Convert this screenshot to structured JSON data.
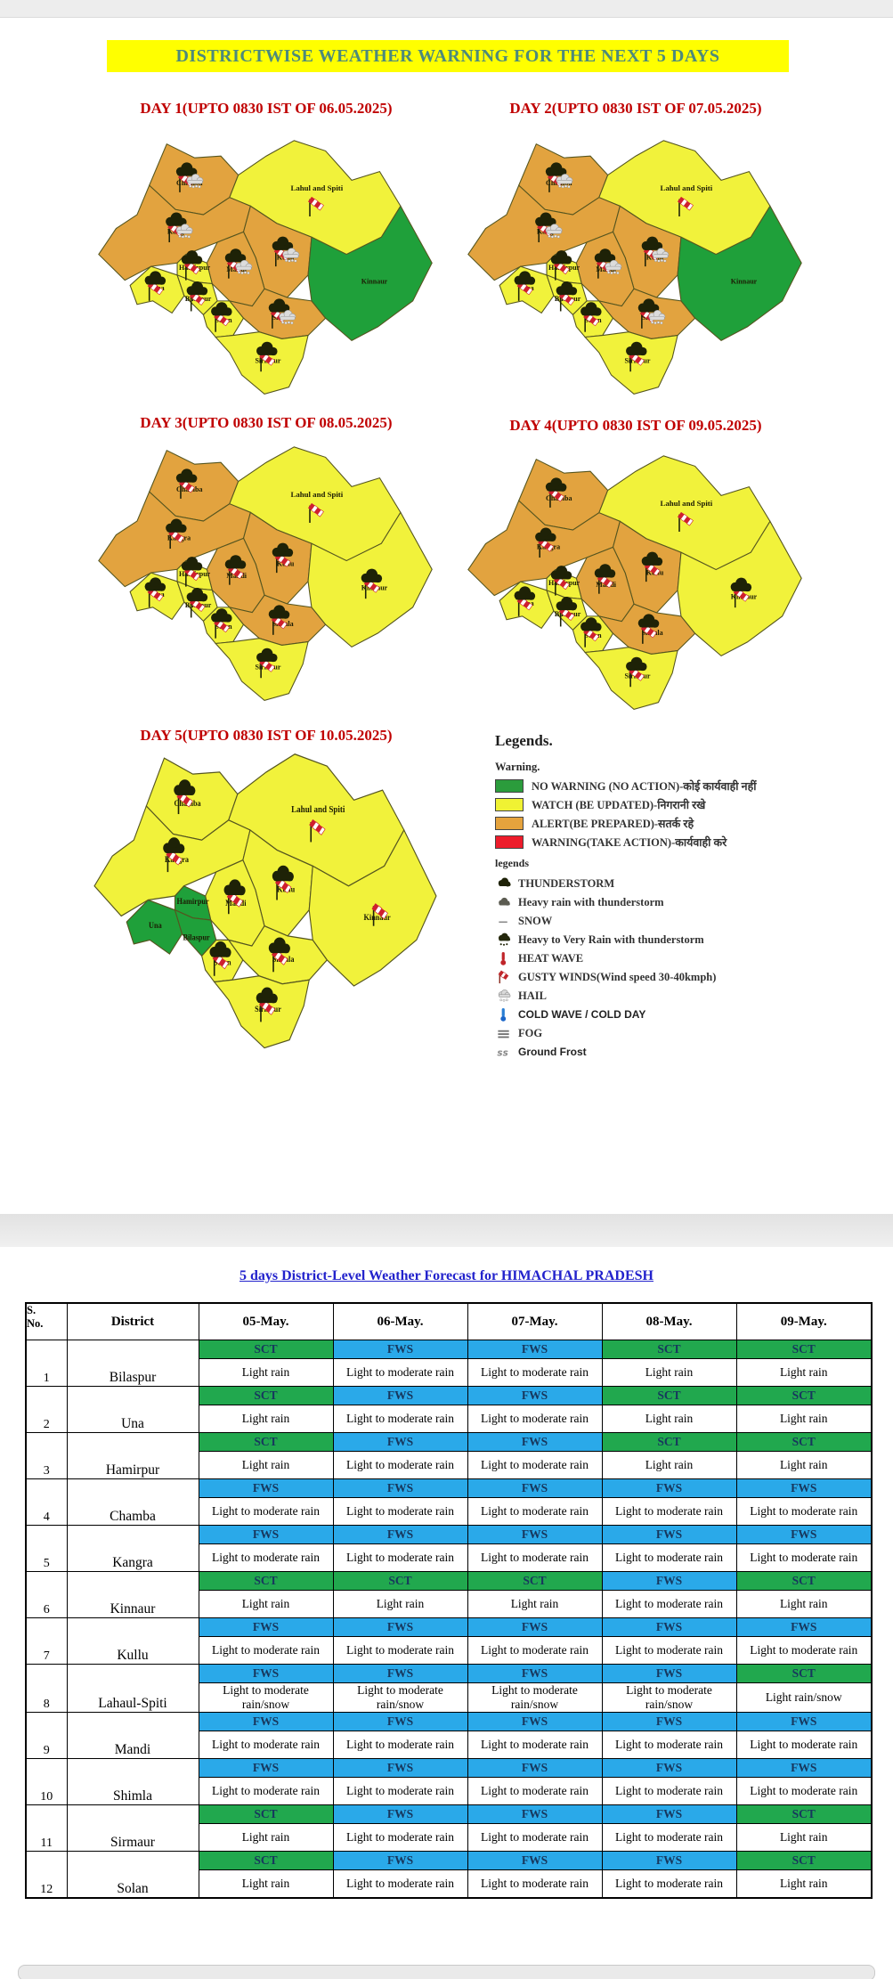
{
  "banner": {
    "text": "DISTRICTWISE WEATHER WARNING FOR THE NEXT 5 DAYS",
    "bg_color": "#ffff00",
    "text_color": "#4d8a7b"
  },
  "warning_colors": {
    "no_warning": "#1fa03a",
    "watch": "#f1f23b",
    "alert": "#e2a33f",
    "warning": "#ed1c2b"
  },
  "days": [
    {
      "title": "DAY 1(UPTO 0830 IST OF 06.05.2025)",
      "warnings": {
        "Chamba": "alert",
        "Lahul and Spiti": "watch",
        "Kangra": "alert",
        "Kullu": "alert",
        "Mandi": "alert",
        "Hamirpur": "watch",
        "Una": "watch",
        "Bilaspur": "watch",
        "Solan": "watch",
        "Shimla": "alert",
        "Sirmaur": "watch",
        "Kinnaur": "no_warning"
      },
      "icons": {
        "Chamba": "thunderstorm-rain-windsock",
        "Lahul and Spiti": "windsock",
        "Kangra": "thunderstorm-rain-windsock",
        "Kullu": "thunderstorm-rain-windsock",
        "Mandi": "thunderstorm-rain-windsock",
        "Hamirpur": "thunderstorm-windsock",
        "Una": "thunderstorm-windsock",
        "Bilaspur": "thunderstorm-windsock",
        "Solan": "thunderstorm-windsock",
        "Shimla": "thunderstorm-rain-windsock",
        "Sirmaur": "thunderstorm-windsock",
        "Kinnaur": "none"
      }
    },
    {
      "title": "DAY 2(UPTO 0830 IST OF 07.05.2025)",
      "warnings": {
        "Chamba": "alert",
        "Lahul and Spiti": "watch",
        "Kangra": "alert",
        "Kullu": "alert",
        "Mandi": "alert",
        "Hamirpur": "watch",
        "Una": "watch",
        "Bilaspur": "watch",
        "Solan": "watch",
        "Shimla": "alert",
        "Sirmaur": "watch",
        "Kinnaur": "no_warning"
      },
      "icons": {
        "Chamba": "thunderstorm-rain-windsock",
        "Lahul and Spiti": "windsock",
        "Kangra": "thunderstorm-rain-windsock",
        "Kullu": "thunderstorm-rain-windsock",
        "Mandi": "thunderstorm-rain-windsock",
        "Hamirpur": "thunderstorm-windsock",
        "Una": "thunderstorm-windsock",
        "Bilaspur": "thunderstorm-windsock",
        "Solan": "thunderstorm-windsock",
        "Shimla": "thunderstorm-rain-windsock",
        "Sirmaur": "thunderstorm-windsock",
        "Kinnaur": "none"
      }
    },
    {
      "title": "DAY 3(UPTO 0830 IST OF 08.05.2025)",
      "warnings": {
        "Chamba": "alert",
        "Lahul and Spiti": "watch",
        "Kangra": "alert",
        "Kullu": "alert",
        "Mandi": "alert",
        "Hamirpur": "watch",
        "Una": "watch",
        "Bilaspur": "watch",
        "Solan": "watch",
        "Shimla": "alert",
        "Sirmaur": "watch",
        "Kinnaur": "watch"
      },
      "icons": {
        "Chamba": "thunderstorm-windsock",
        "Lahul and Spiti": "windsock",
        "Kangra": "thunderstorm-windsock",
        "Kullu": "thunderstorm-windsock",
        "Mandi": "thunderstorm-windsock",
        "Hamirpur": "thunderstorm-windsock",
        "Una": "thunderstorm-windsock",
        "Bilaspur": "thunderstorm-windsock",
        "Solan": "thunderstorm-windsock",
        "Shimla": "thunderstorm-windsock",
        "Sirmaur": "thunderstorm-windsock",
        "Kinnaur": "thunderstorm-windsock"
      }
    },
    {
      "title": "DAY 4(UPTO 0830 IST OF 09.05.2025)",
      "warnings": {
        "Chamba": "alert",
        "Lahul and Spiti": "watch",
        "Kangra": "alert",
        "Kullu": "alert",
        "Mandi": "alert",
        "Hamirpur": "watch",
        "Una": "watch",
        "Bilaspur": "watch",
        "Solan": "watch",
        "Shimla": "alert",
        "Sirmaur": "watch",
        "Kinnaur": "watch"
      },
      "icons": {
        "Chamba": "thunderstorm-windsock",
        "Lahul and Spiti": "windsock",
        "Kangra": "thunderstorm-windsock",
        "Kullu": "thunderstorm-windsock",
        "Mandi": "thunderstorm-windsock",
        "Hamirpur": "thunderstorm-windsock",
        "Una": "thunderstorm-windsock",
        "Bilaspur": "thunderstorm-windsock",
        "Solan": "thunderstorm-windsock",
        "Shimla": "thunderstorm-windsock",
        "Sirmaur": "thunderstorm-windsock",
        "Kinnaur": "thunderstorm-windsock"
      }
    },
    {
      "title": "DAY 5(UPTO 0830 IST OF 10.05.2025)",
      "warnings": {
        "Chamba": "watch",
        "Lahul and Spiti": "watch",
        "Kangra": "watch",
        "Kullu": "watch",
        "Mandi": "watch",
        "Hamirpur": "no_warning",
        "Una": "no_warning",
        "Bilaspur": "no_warning",
        "Solan": "watch",
        "Shimla": "watch",
        "Sirmaur": "watch",
        "Kinnaur": "watch"
      },
      "icons": {
        "Chamba": "thunderstorm-windsock",
        "Lahul and Spiti": "windsock",
        "Kangra": "thunderstorm-windsock",
        "Kullu": "thunderstorm-windsock",
        "Mandi": "thunderstorm-windsock",
        "Hamirpur": "none",
        "Una": "none",
        "Bilaspur": "none",
        "Solan": "thunderstorm-windsock",
        "Shimla": "thunderstorm-windsock",
        "Sirmaur": "thunderstorm-windsock",
        "Kinnaur": "windsock"
      }
    }
  ],
  "legends": {
    "heading": "Legends.",
    "warning_heading": "Warning.",
    "warning_items": [
      {
        "level": "no_warning",
        "color": "#2b9c3c",
        "label": "NO WARNING (NO ACTION)-कोई कार्यवाही नहीं"
      },
      {
        "level": "watch",
        "color": "#f0f233",
        "label": "WATCH (BE UPDATED)-निगरानी रखे"
      },
      {
        "level": "alert",
        "color": "#e5a33d",
        "label": "ALERT(BE PREPARED)-सतर्क रहे"
      },
      {
        "level": "warning",
        "color": "#ed1c2b",
        "label": "WARNING(TAKE ACTION)-कार्यवाही करे"
      }
    ],
    "symbol_heading": "legends",
    "symbol_items": [
      {
        "icon": "thunderstorm-icon",
        "label": "THUNDERSTORM"
      },
      {
        "icon": "heavy-rain-thunderstorm-icon",
        "label": "Heavy rain with thunderstorm"
      },
      {
        "icon": "snow-icon",
        "label": "SNOW"
      },
      {
        "icon": "heavy-very-rain-icon",
        "label": "Heavy to Very Rain with thunderstorm"
      },
      {
        "icon": "heat-wave-icon",
        "label": "HEAT WAVE"
      },
      {
        "icon": "gusty-winds-icon",
        "label": "GUSTY WINDS(Wind speed 30-40kmph)"
      },
      {
        "icon": "hail-icon",
        "label": "HAIL"
      },
      {
        "icon": "cold-wave-icon",
        "label": "COLD WAVE / COLD DAY"
      },
      {
        "icon": "fog-icon",
        "label": "FOG"
      },
      {
        "icon": "ground-frost-icon",
        "label": "Ground Frost"
      }
    ]
  },
  "forecast_table": {
    "title": "5 days District-Level Weather Forecast for HIMACHAL PRADESH",
    "header": {
      "sno_lines": [
        "S.",
        "No."
      ],
      "district": "District",
      "dates": [
        "05-May.",
        "06-May.",
        "07-May.",
        "08-May.",
        "09-May."
      ]
    },
    "code_colors": {
      "SCT": "#21a84e",
      "FWS": "#2aa9e9"
    },
    "rows": [
      {
        "no": "1",
        "district": "Bilaspur",
        "codes": [
          "SCT",
          "FWS",
          "FWS",
          "SCT",
          "SCT"
        ],
        "forecast": [
          "Light rain",
          "Light to moderate rain",
          "Light to moderate rain",
          "Light rain",
          "Light rain"
        ]
      },
      {
        "no": "2",
        "district": "Una",
        "codes": [
          "SCT",
          "FWS",
          "FWS",
          "SCT",
          "SCT"
        ],
        "forecast": [
          "Light rain",
          "Light to moderate rain",
          "Light to moderate rain",
          "Light rain",
          "Light rain"
        ]
      },
      {
        "no": "3",
        "district": "Hamirpur",
        "codes": [
          "SCT",
          "FWS",
          "FWS",
          "SCT",
          "SCT"
        ],
        "forecast": [
          "Light rain",
          "Light to moderate rain",
          "Light to moderate rain",
          "Light rain",
          "Light rain"
        ]
      },
      {
        "no": "4",
        "district": "Chamba",
        "codes": [
          "FWS",
          "FWS",
          "FWS",
          "FWS",
          "FWS"
        ],
        "forecast": [
          "Light to moderate rain",
          "Light to moderate rain",
          "Light to moderate rain",
          "Light to moderate rain",
          "Light to moderate rain"
        ]
      },
      {
        "no": "5",
        "district": "Kangra",
        "codes": [
          "FWS",
          "FWS",
          "FWS",
          "FWS",
          "FWS"
        ],
        "forecast": [
          "Light to moderate rain",
          "Light to moderate rain",
          "Light to moderate rain",
          "Light to moderate rain",
          "Light to moderate rain"
        ]
      },
      {
        "no": "6",
        "district": "Kinnaur",
        "codes": [
          "SCT",
          "SCT",
          "SCT",
          "FWS",
          "SCT"
        ],
        "forecast": [
          "Light rain",
          "Light rain",
          "Light rain",
          "Light to moderate rain",
          "Light rain"
        ]
      },
      {
        "no": "7",
        "district": "Kullu",
        "codes": [
          "FWS",
          "FWS",
          "FWS",
          "FWS",
          "FWS"
        ],
        "forecast": [
          "Light to moderate rain",
          "Light to moderate rain",
          "Light to moderate rain",
          "Light to moderate rain",
          "Light to moderate rain"
        ]
      },
      {
        "no": "8",
        "district": "Lahaul-Spiti",
        "codes": [
          "FWS",
          "FWS",
          "FWS",
          "FWS",
          "SCT"
        ],
        "forecast": [
          "Light to moderate rain/snow",
          "Light to moderate rain/snow",
          "Light to moderate rain/snow",
          "Light to moderate rain/snow",
          "Light rain/snow"
        ]
      },
      {
        "no": "9",
        "district": "Mandi",
        "codes": [
          "FWS",
          "FWS",
          "FWS",
          "FWS",
          "FWS"
        ],
        "forecast": [
          "Light to moderate rain",
          "Light to moderate rain",
          "Light to moderate rain",
          "Light to moderate rain",
          "Light to moderate rain"
        ]
      },
      {
        "no": "10",
        "district": "Shimla",
        "codes": [
          "FWS",
          "FWS",
          "FWS",
          "FWS",
          "FWS"
        ],
        "forecast": [
          "Light to moderate rain",
          "Light to moderate rain",
          "Light to moderate rain",
          "Light to moderate rain",
          "Light to moderate rain"
        ]
      },
      {
        "no": "11",
        "district": "Sirmaur",
        "codes": [
          "SCT",
          "FWS",
          "FWS",
          "FWS",
          "SCT"
        ],
        "forecast": [
          "Light rain",
          "Light to moderate rain",
          "Light to moderate rain",
          "Light to moderate rain",
          "Light rain"
        ]
      },
      {
        "no": "12",
        "district": "Solan",
        "codes": [
          "SCT",
          "FWS",
          "FWS",
          "FWS",
          "SCT"
        ],
        "forecast": [
          "Light rain",
          "Light to moderate rain",
          "Light to moderate rain",
          "Light to moderate rain",
          "Light rain"
        ]
      }
    ]
  }
}
